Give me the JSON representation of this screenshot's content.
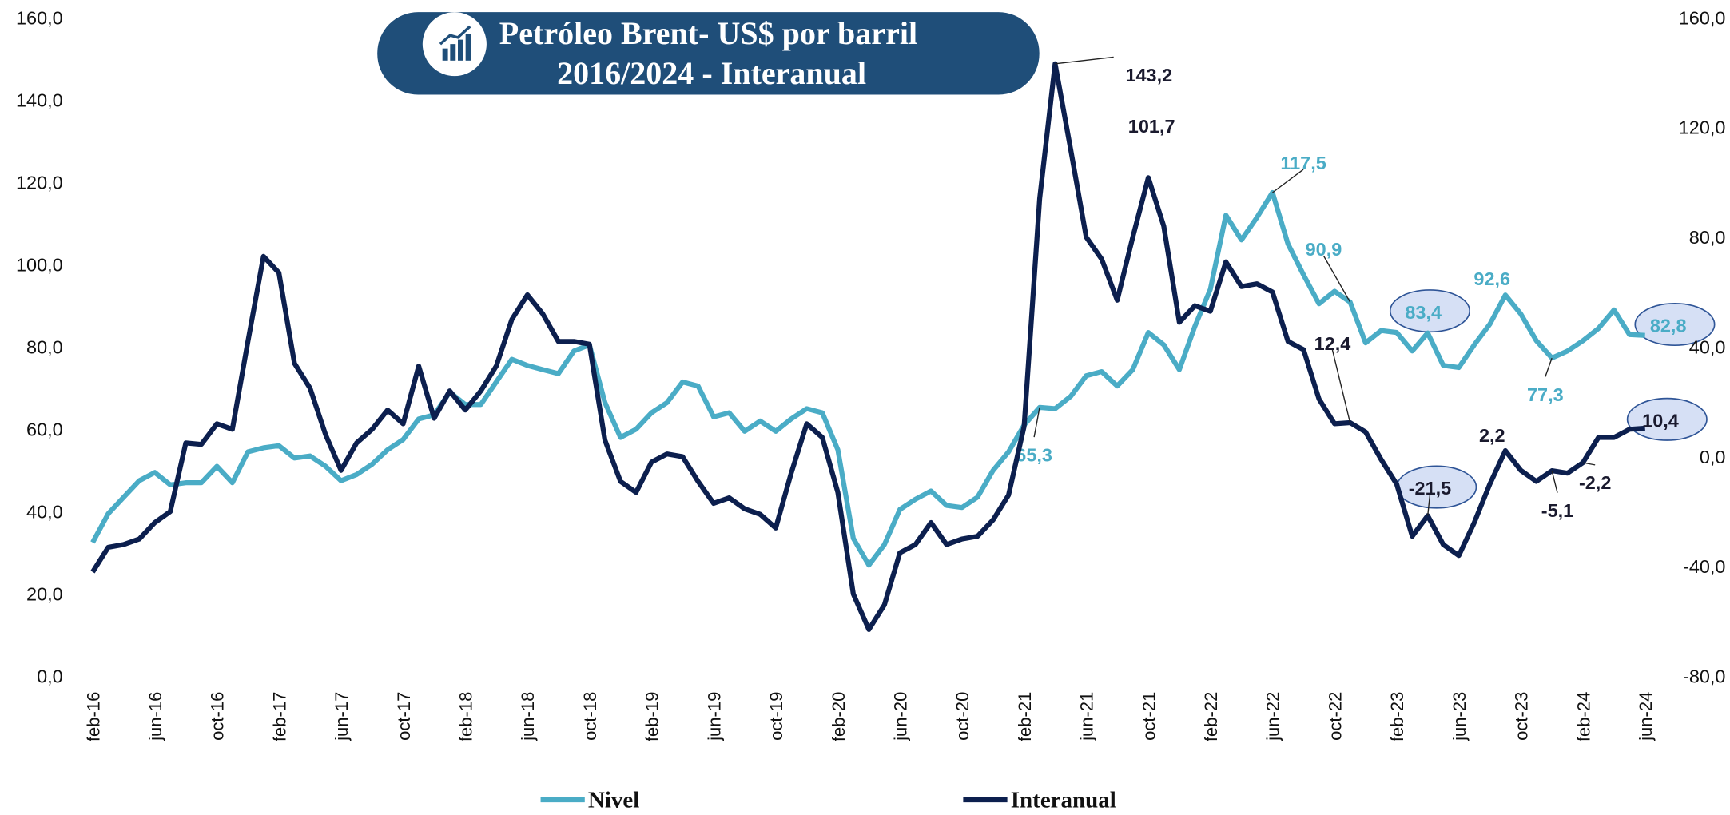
{
  "chart_data": {
    "type": "line",
    "title": [
      "Petróleo Brent- US$ por barril",
      "2016/2024 - Interanual"
    ],
    "categories": [
      "feb-16",
      null,
      null,
      null,
      "jun-16",
      null,
      null,
      null,
      "oct-16",
      null,
      null,
      null,
      "feb-17",
      null,
      null,
      null,
      "jun-17",
      null,
      null,
      null,
      "oct-17",
      null,
      null,
      null,
      "feb-18",
      null,
      null,
      null,
      "jun-18",
      null,
      null,
      null,
      "oct-18",
      null,
      null,
      null,
      "feb-19",
      null,
      null,
      null,
      "jun-19",
      null,
      null,
      null,
      "oct-19",
      null,
      null,
      null,
      "feb-20",
      null,
      null,
      null,
      "jun-20",
      null,
      null,
      null,
      "oct-20",
      null,
      null,
      null,
      "feb-21",
      null,
      null,
      null,
      "jun-21",
      null,
      null,
      null,
      "oct-21",
      null,
      null,
      null,
      "feb-22",
      null,
      null,
      null,
      "jun-22",
      null,
      null,
      null,
      "oct-22",
      null,
      null,
      null,
      "feb-23",
      null,
      null,
      null,
      "jun-23",
      null,
      null,
      null,
      "oct-23",
      null,
      null,
      null,
      "feb-24",
      null,
      null,
      null,
      "jun-24"
    ],
    "ylim": [
      0,
      160
    ],
    "yticks": [
      {
        "value": 0,
        "label": "0,0"
      },
      {
        "value": 20,
        "label": "20,0"
      },
      {
        "value": 40,
        "label": "40,0"
      },
      {
        "value": 60,
        "label": "60,0"
      },
      {
        "value": 80,
        "label": "80,0"
      },
      {
        "value": 100,
        "label": "100,0"
      },
      {
        "value": 120,
        "label": "120,0"
      },
      {
        "value": 140,
        "label": "140,0"
      },
      {
        "value": 160,
        "label": "160,0"
      }
    ],
    "y2lim": [
      -80,
      160
    ],
    "y2ticks": [
      {
        "value": -80,
        "label": "-80,0"
      },
      {
        "value": -40,
        "label": "-40,0"
      },
      {
        "value": 0,
        "label": "0,0"
      },
      {
        "value": 40,
        "label": "40,0"
      },
      {
        "value": 80,
        "label": "80,0"
      },
      {
        "value": 120,
        "label": "120,0"
      },
      {
        "value": 160,
        "label": "160,0"
      }
    ],
    "grid": false,
    "legend": "bottom",
    "series": [
      {
        "name": "Nivel",
        "color": "#4aacc6",
        "axis": "y",
        "values": [
          32.5,
          39.5,
          43.5,
          47.5,
          49.5,
          46.5,
          47,
          47,
          51,
          47,
          54.5,
          55.5,
          56,
          53,
          53.5,
          51,
          47.5,
          49,
          51.5,
          55,
          57.5,
          62.5,
          63.5,
          69,
          66,
          66,
          71.5,
          77,
          75.5,
          74.5,
          73.5,
          79,
          80.5,
          66.5,
          58,
          60,
          64,
          66.5,
          71.5,
          70.5,
          63,
          64,
          59.5,
          62,
          59.5,
          62.5,
          65,
          64,
          55,
          33.5,
          27,
          32,
          40.5,
          43,
          45,
          41.5,
          41,
          43.5,
          50,
          54.5,
          61,
          65.3,
          65,
          68,
          73,
          74,
          70.5,
          74.5,
          83.5,
          80.5,
          74.5,
          85,
          94,
          112,
          106,
          111.5,
          117.5,
          105,
          97.5,
          90.5,
          93.5,
          90.9,
          81,
          84,
          83.5,
          79,
          83.4,
          75.5,
          75,
          80.5,
          85.5,
          92.6,
          88,
          81.5,
          77.3,
          79,
          81.5,
          84.5,
          89,
          83,
          82.8
        ],
        "value_labels": [
          null,
          null,
          null,
          null,
          null,
          null,
          null,
          null,
          null,
          null,
          null,
          null,
          null,
          null,
          null,
          null,
          null,
          null,
          null,
          null,
          null,
          null,
          null,
          null,
          null,
          null,
          null,
          null,
          null,
          null,
          null,
          null,
          null,
          null,
          null,
          null,
          null,
          null,
          null,
          null,
          null,
          null,
          null,
          null,
          null,
          null,
          null,
          null,
          null,
          null,
          null,
          null,
          null,
          null,
          null,
          null,
          null,
          null,
          null,
          null,
          null,
          "65,3",
          null,
          null,
          null,
          null,
          null,
          null,
          null,
          null,
          null,
          null,
          null,
          null,
          null,
          null,
          "117,5",
          null,
          null,
          null,
          null,
          "90,9",
          null,
          null,
          null,
          null,
          "83,4",
          null,
          null,
          null,
          null,
          "92,6",
          null,
          null,
          "77,3",
          null,
          null,
          null,
          null,
          null,
          "82,8"
        ],
        "circled": [
          86,
          100
        ]
      },
      {
        "name": "Interanual",
        "color": "#0c1f4e",
        "axis": "y2",
        "values": [
          -42,
          -33,
          -32,
          -30,
          -24,
          -20,
          5,
          4.5,
          12,
          10,
          42,
          73,
          67,
          34,
          25,
          8,
          -5,
          5,
          10,
          17,
          12,
          33,
          14,
          24,
          17,
          24,
          33,
          50,
          59,
          52,
          42,
          42,
          41,
          6,
          -9,
          -13,
          -2,
          1,
          0,
          -9,
          -17,
          -15,
          -19,
          -21,
          -26,
          -6,
          12,
          7,
          -13,
          -50,
          -63,
          -54,
          -35,
          -32,
          -24,
          -32,
          -30,
          -29,
          -23,
          -14,
          11,
          94,
          143.2,
          112,
          80,
          72,
          57,
          80,
          101.7,
          84,
          49,
          55,
          53,
          71,
          62,
          63,
          60,
          42,
          39,
          21,
          12,
          12.4,
          9,
          -1,
          -10,
          -29,
          -21.5,
          -32,
          -36,
          -24,
          -10,
          2.2,
          -5,
          -9,
          -5.1,
          -6,
          -2.2,
          7,
          7,
          10,
          10.4
        ],
        "value_labels": [
          null,
          null,
          null,
          null,
          null,
          null,
          null,
          null,
          null,
          null,
          null,
          null,
          null,
          null,
          null,
          null,
          null,
          null,
          null,
          null,
          null,
          null,
          null,
          null,
          null,
          null,
          null,
          null,
          null,
          null,
          null,
          null,
          null,
          null,
          null,
          null,
          null,
          null,
          null,
          null,
          null,
          null,
          null,
          null,
          null,
          null,
          null,
          null,
          null,
          null,
          null,
          null,
          null,
          null,
          null,
          null,
          null,
          null,
          null,
          null,
          null,
          null,
          "143,2",
          null,
          null,
          null,
          null,
          null,
          "101,7",
          null,
          null,
          null,
          null,
          null,
          null,
          null,
          null,
          null,
          null,
          null,
          null,
          "12,4",
          null,
          null,
          null,
          null,
          "-21,5",
          null,
          null,
          null,
          null,
          "2,2",
          null,
          null,
          "-5,1",
          null,
          "-2,2",
          null,
          null,
          null,
          "10,4"
        ],
        "circled": [
          86,
          100
        ]
      }
    ]
  }
}
